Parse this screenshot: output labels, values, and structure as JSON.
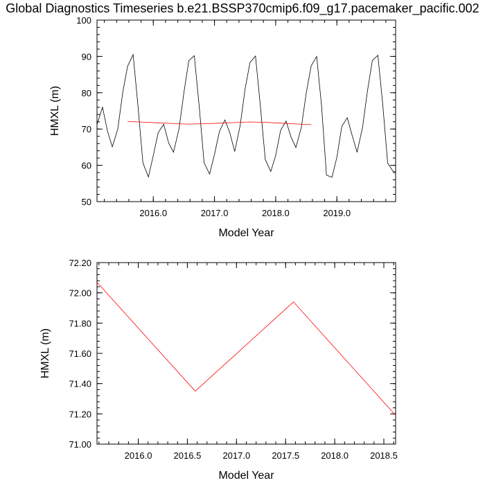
{
  "title": "Global Diagnostics Timeseries b.e21.BSSP370cmip6.f09_g17.pacemaker_pacific.002",
  "colors": {
    "monthly_line": "#000000",
    "annual_line": "#ff0000",
    "axes": "#000000",
    "background": "#ffffff"
  },
  "chart_data": [
    {
      "type": "line",
      "xlabel": "Model Year",
      "ylabel": "HMXL (m)",
      "xlim": [
        2015.08,
        2019.96
      ],
      "ylim": [
        50,
        100
      ],
      "x_ticks": [
        2016.0,
        2017.0,
        2018.0,
        2019.0
      ],
      "x_tick_labels": [
        "2016.0",
        "2017.0",
        "2018.0",
        "2019.0"
      ],
      "y_ticks": [
        50,
        60,
        70,
        80,
        90,
        100
      ],
      "y_tick_labels": [
        "50",
        "60",
        "70",
        "80",
        "90",
        "100"
      ],
      "grid": false,
      "legend": "none",
      "series": [
        {
          "color": "#000000",
          "x": [
            2015.08,
            2015.17,
            2015.25,
            2015.33,
            2015.42,
            2015.5,
            2015.58,
            2015.67,
            2015.75,
            2015.83,
            2015.92,
            2016.0,
            2016.08,
            2016.17,
            2016.25,
            2016.33,
            2016.42,
            2016.5,
            2016.58,
            2016.67,
            2016.75,
            2016.83,
            2016.92,
            2017.0,
            2017.08,
            2017.17,
            2017.25,
            2017.33,
            2017.42,
            2017.5,
            2017.58,
            2017.67,
            2017.75,
            2017.83,
            2017.92,
            2018.0,
            2018.08,
            2018.17,
            2018.25,
            2018.33,
            2018.42,
            2018.5,
            2018.58,
            2018.67,
            2018.75,
            2018.83,
            2018.92,
            2019.0,
            2019.08,
            2019.17,
            2019.25,
            2019.33,
            2019.42,
            2019.5,
            2019.58,
            2019.67,
            2019.75,
            2019.83,
            2019.92,
            2019.96
          ],
          "values": [
            71.2,
            76.0,
            69.5,
            65.1,
            70.0,
            80.0,
            87.3,
            90.5,
            76.3,
            60.7,
            56.8,
            62.7,
            69.0,
            71.3,
            66.2,
            63.6,
            70.0,
            80.0,
            88.8,
            90.2,
            76.3,
            60.7,
            57.6,
            63.0,
            69.3,
            72.5,
            69.0,
            63.8,
            71.0,
            81.0,
            88.3,
            90.1,
            76.3,
            61.6,
            58.3,
            62.7,
            69.6,
            72.2,
            67.8,
            64.9,
            70.5,
            80.0,
            87.4,
            90.0,
            76.3,
            57.3,
            56.7,
            62.2,
            70.7,
            73.1,
            68.2,
            63.6,
            70.5,
            80.5,
            88.9,
            90.3,
            76.7,
            60.6,
            58.3,
            58.2
          ]
        },
        {
          "color": "#ff0000",
          "x": [
            2015.58,
            2015.83,
            2016.08,
            2016.33,
            2016.58,
            2016.83,
            2017.08,
            2017.33,
            2017.58,
            2017.83,
            2018.08,
            2018.33,
            2018.58
          ],
          "values": [
            72.07,
            71.9,
            71.7,
            71.5,
            71.35,
            71.45,
            71.6,
            71.78,
            71.94,
            71.85,
            71.6,
            71.4,
            71.2
          ]
        }
      ]
    },
    {
      "type": "line",
      "xlabel": "Model Year",
      "ylabel": "HMXL (m)",
      "xlim": [
        2015.58,
        2018.62
      ],
      "ylim": [
        71.0,
        72.2
      ],
      "x_ticks": [
        2016.0,
        2016.5,
        2017.0,
        2017.5,
        2018.0,
        2018.5
      ],
      "x_tick_labels": [
        "2016.0",
        "2016.5",
        "2017.0",
        "2017.5",
        "2018.0",
        "2018.5"
      ],
      "y_ticks": [
        71.0,
        71.2,
        71.4,
        71.6,
        71.8,
        72.0,
        72.2
      ],
      "y_tick_labels": [
        "71.00",
        "71.20",
        "71.40",
        "71.60",
        "71.80",
        "72.00",
        "72.20"
      ],
      "grid": false,
      "legend": "none",
      "series": [
        {
          "color": "#ff0000",
          "x": [
            2015.58,
            2016.58,
            2017.58,
            2018.62
          ],
          "values": [
            72.07,
            71.35,
            71.94,
            71.19
          ]
        }
      ]
    }
  ]
}
